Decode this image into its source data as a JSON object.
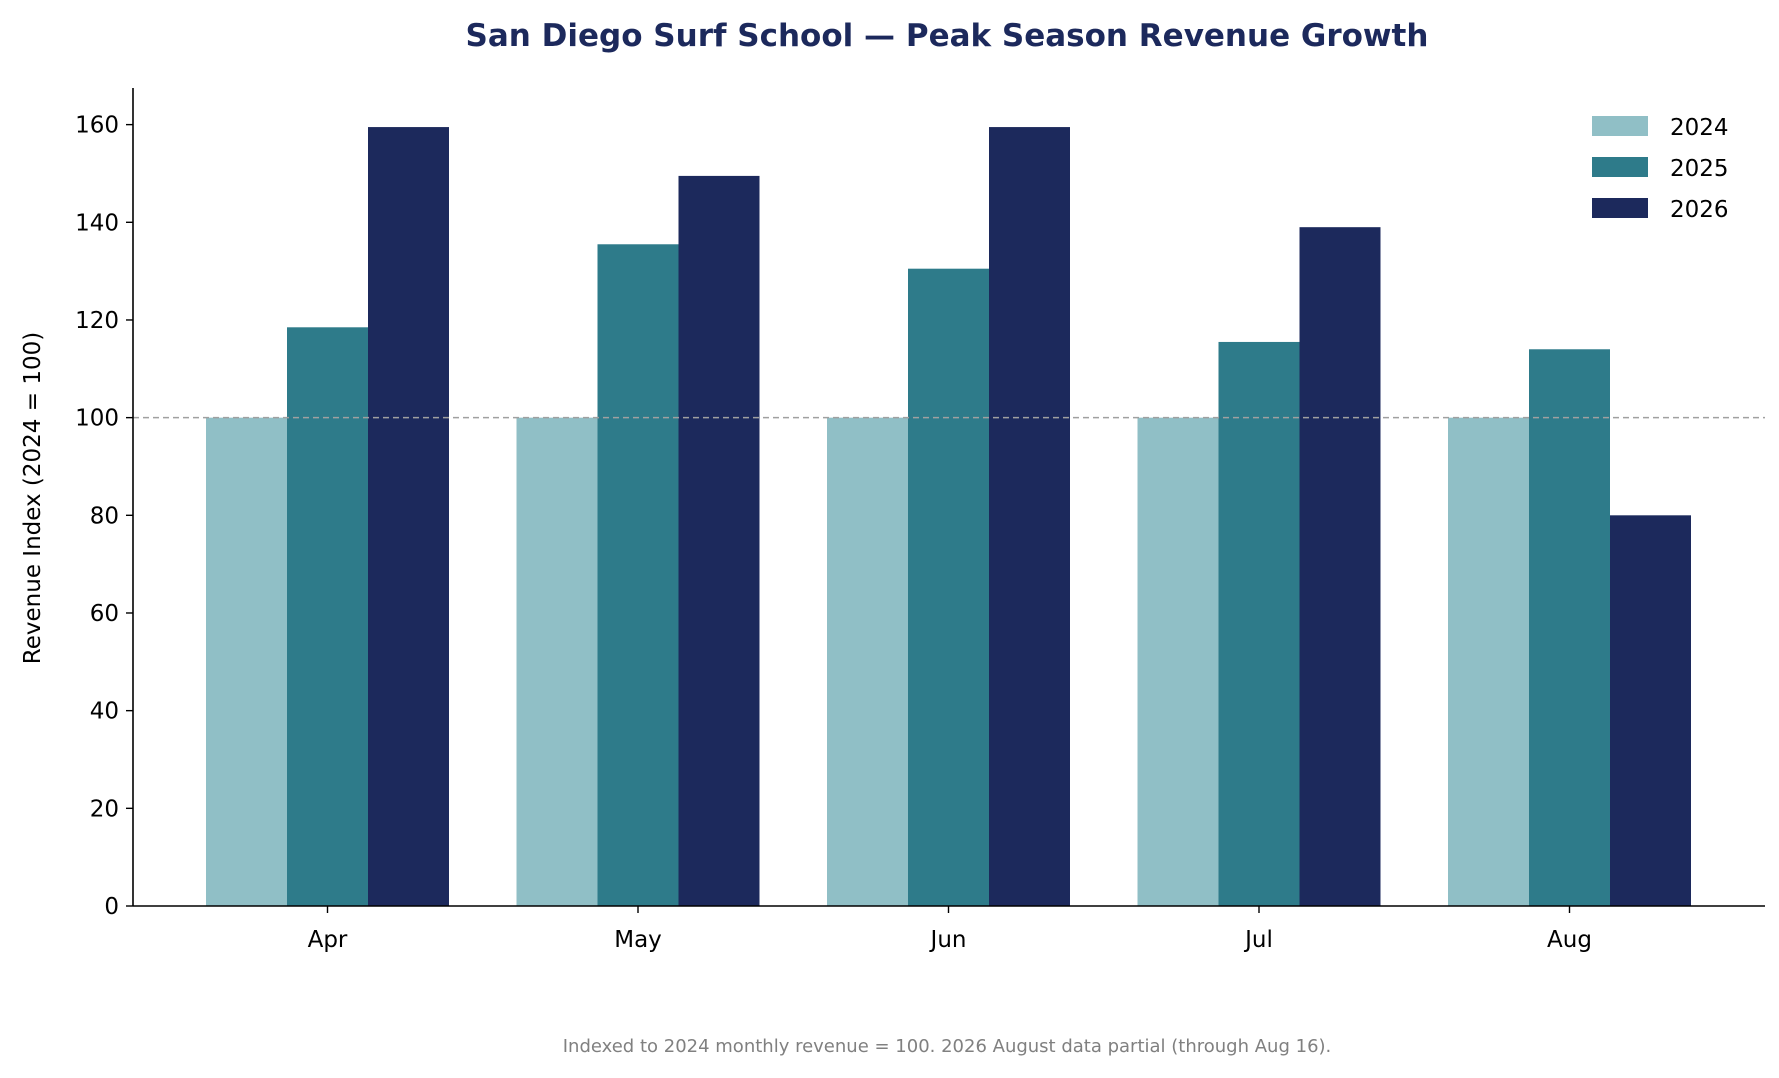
{
  "chart_data": {
    "type": "bar",
    "title": "San Diego Surf School — Peak Season Revenue Growth",
    "xlabel": "",
    "ylabel": "Revenue Index (2024 = 100)",
    "categories": [
      "Apr",
      "May",
      "Jun",
      "Jul",
      "Aug"
    ],
    "series": [
      {
        "name": "2024",
        "values": [
          100,
          100,
          100,
          100,
          100
        ],
        "color": "#90bfc6"
      },
      {
        "name": "2025",
        "values": [
          118.5,
          135.5,
          130.5,
          115.5,
          114
        ],
        "color": "#2e7b8a"
      },
      {
        "name": "2026",
        "values": [
          159.5,
          149.5,
          159.5,
          139,
          80
        ],
        "color": "#1c295c"
      }
    ],
    "ylim": [
      0,
      167.5
    ],
    "yticks": [
      0,
      20,
      40,
      60,
      80,
      100,
      120,
      140,
      160
    ],
    "reference_line": {
      "value": 100,
      "style": "dashed",
      "color": "#a0a0a0"
    },
    "grid": false,
    "legend_position": "top-right",
    "title_color": "#1c295c",
    "footnote": "Indexed to 2024 monthly revenue = 100. 2026 August data partial (through Aug 16).",
    "footnote_color": "#808080"
  }
}
